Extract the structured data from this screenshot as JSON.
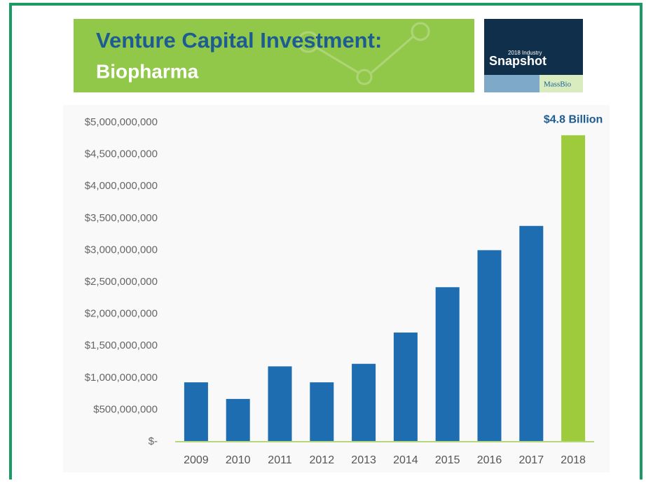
{
  "banner": {
    "title": "Venture Capital Investment:",
    "subtitle": "Biopharma"
  },
  "badge": {
    "line1": "2018 Industry",
    "line2": "Snapshot",
    "brand": "MassBio"
  },
  "chart_data": {
    "type": "bar",
    "categories": [
      "2009",
      "2010",
      "2011",
      "2012",
      "2013",
      "2014",
      "2015",
      "2016",
      "2017",
      "2018"
    ],
    "values": [
      930000000,
      670000000,
      1180000000,
      930000000,
      1220000000,
      1710000000,
      2420000000,
      3000000000,
      3380000000,
      4800000000
    ],
    "value_labels": [
      null,
      null,
      null,
      null,
      null,
      null,
      null,
      null,
      null,
      "$4.8 Billion"
    ],
    "colors": [
      "#1f6db1",
      "#1f6db1",
      "#1f6db1",
      "#1f6db1",
      "#1f6db1",
      "#1f6db1",
      "#1f6db1",
      "#1f6db1",
      "#1f6db1",
      "#9dcb3c"
    ],
    "ylim": [
      0,
      5000000000
    ],
    "yticks": [
      {
        "value": 0,
        "label": "$-"
      },
      {
        "value": 500000000,
        "label": "$500,000,000"
      },
      {
        "value": 1000000000,
        "label": "$1,000,000,000"
      },
      {
        "value": 1500000000,
        "label": "$1,500,000,000"
      },
      {
        "value": 2000000000,
        "label": "$2,000,000,000"
      },
      {
        "value": 2500000000,
        "label": "$2,500,000,000"
      },
      {
        "value": 3000000000,
        "label": "$3,000,000,000"
      },
      {
        "value": 3500000000,
        "label": "$3,500,000,000"
      },
      {
        "value": 4000000000,
        "label": "$4,000,000,000"
      },
      {
        "value": 4500000000,
        "label": "$4,500,000,000"
      },
      {
        "value": 5000000000,
        "label": "$5,000,000,000"
      }
    ],
    "grid": false
  }
}
